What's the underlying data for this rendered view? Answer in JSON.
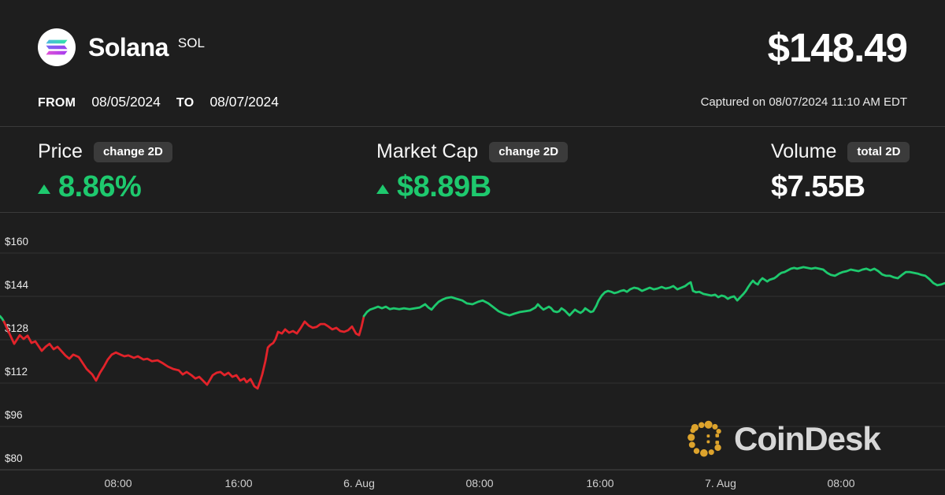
{
  "header": {
    "coin_name": "Solana",
    "coin_ticker": "SOL",
    "price": "$148.49",
    "captured": "Captured on 08/07/2024 11:10 AM EDT",
    "from_label": "FROM",
    "from_date": "08/05/2024",
    "to_label": "TO",
    "to_date": "08/07/2024"
  },
  "stats": [
    {
      "label": "Price",
      "badge": "change 2D",
      "value": "8.86%",
      "direction": "up",
      "value_color": "green"
    },
    {
      "label": "Market Cap",
      "badge": "change 2D",
      "value": "$8.89B",
      "direction": "up",
      "value_color": "green"
    },
    {
      "label": "Volume",
      "badge": "total 2D",
      "value": "$7.55B",
      "direction": "none",
      "value_color": "white"
    }
  ],
  "watermark": {
    "brand": "CoinDesk"
  },
  "colors": {
    "bg": "#1E1E1E",
    "divider": "#3A3A3A",
    "grid": "#333333",
    "axisline": "#454545",
    "badge": "#3B3B3B",
    "green": "#1EC96E",
    "red": "#E2232A",
    "gold": "#DDA32C"
  },
  "chart_data": {
    "type": "line",
    "title": "Solana (SOL) price, 08/05/2024 to 08/07/2024",
    "xlabel": "",
    "ylabel": "",
    "x_unit": "hours since 2024-08-05 00:00 UTC",
    "y_unit": "USD",
    "x_range": [
      0.16,
      62.9
    ],
    "y_range": [
      80,
      160
    ],
    "grid": true,
    "legend": false,
    "y_ticks": [
      {
        "value": 160,
        "label": "$160"
      },
      {
        "value": 144,
        "label": "$144"
      },
      {
        "value": 128,
        "label": "$128"
      },
      {
        "value": 112,
        "label": "$112"
      },
      {
        "value": 96,
        "label": "$96"
      },
      {
        "value": 80,
        "label": "$80"
      }
    ],
    "x_ticks": [
      {
        "value": 8,
        "label": "08:00"
      },
      {
        "value": 16,
        "label": "16:00"
      },
      {
        "value": 24,
        "label": "6. Aug"
      },
      {
        "value": 32,
        "label": "08:00"
      },
      {
        "value": 40,
        "label": "16:00"
      },
      {
        "value": 48,
        "label": "7. Aug"
      },
      {
        "value": 56,
        "label": "08:00"
      }
    ],
    "segments": [
      {
        "name": "opening-uptick",
        "color": "green",
        "points": [
          [
            0.16,
            136.7
          ],
          [
            0.3,
            135.8
          ],
          [
            0.42,
            134.7
          ]
        ]
      },
      {
        "name": "decline",
        "color": "red",
        "points": [
          [
            0.42,
            134.7
          ],
          [
            1.1,
            126.5
          ],
          [
            1.47,
            129.7
          ],
          [
            1.73,
            128.3
          ],
          [
            1.99,
            129.5
          ],
          [
            2.25,
            126.8
          ],
          [
            2.51,
            127.4
          ],
          [
            2.93,
            123.9
          ],
          [
            3.19,
            125.4
          ],
          [
            3.45,
            126.5
          ],
          [
            3.72,
            124.5
          ],
          [
            3.98,
            125.4
          ],
          [
            4.5,
            122.2
          ],
          [
            4.76,
            121.0
          ],
          [
            5.02,
            122.5
          ],
          [
            5.39,
            121.6
          ],
          [
            5.91,
            117.2
          ],
          [
            6.28,
            115.2
          ],
          [
            6.54,
            112.9
          ],
          [
            6.8,
            115.8
          ],
          [
            7.06,
            118.1
          ],
          [
            7.32,
            120.7
          ],
          [
            7.58,
            122.5
          ],
          [
            7.85,
            123.3
          ],
          [
            8.16,
            122.5
          ],
          [
            8.42,
            121.9
          ],
          [
            8.68,
            122.2
          ],
          [
            9.05,
            121.3
          ],
          [
            9.31,
            121.9
          ],
          [
            9.68,
            120.7
          ],
          [
            9.94,
            121.0
          ],
          [
            10.25,
            120.1
          ],
          [
            10.62,
            120.4
          ],
          [
            10.98,
            119.3
          ],
          [
            11.3,
            118.1
          ],
          [
            11.66,
            117.2
          ],
          [
            12.03,
            116.7
          ],
          [
            12.29,
            115.2
          ],
          [
            12.55,
            116.1
          ],
          [
            12.87,
            114.9
          ],
          [
            13.13,
            113.7
          ],
          [
            13.39,
            114.3
          ],
          [
            13.75,
            112.3
          ],
          [
            13.91,
            111.4
          ],
          [
            14.28,
            114.9
          ],
          [
            14.54,
            115.8
          ],
          [
            14.8,
            116.1
          ],
          [
            15.06,
            114.9
          ],
          [
            15.32,
            115.8
          ],
          [
            15.59,
            114.3
          ],
          [
            15.85,
            114.9
          ],
          [
            16.11,
            112.9
          ],
          [
            16.37,
            113.7
          ],
          [
            16.53,
            112.3
          ],
          [
            16.79,
            113.5
          ],
          [
            17.05,
            110.8
          ],
          [
            17.26,
            110.0
          ],
          [
            17.41,
            112.3
          ],
          [
            17.57,
            115.2
          ],
          [
            17.78,
            120.1
          ],
          [
            17.94,
            125.1
          ],
          [
            18.09,
            126.0
          ],
          [
            18.3,
            126.8
          ],
          [
            18.46,
            128.3
          ],
          [
            18.62,
            130.9
          ],
          [
            18.88,
            130.3
          ],
          [
            19.09,
            131.8
          ],
          [
            19.35,
            130.6
          ],
          [
            19.61,
            131.2
          ],
          [
            19.87,
            130.3
          ],
          [
            20.13,
            132.4
          ],
          [
            20.39,
            134.7
          ],
          [
            20.66,
            133.2
          ],
          [
            20.92,
            132.4
          ],
          [
            21.18,
            132.7
          ],
          [
            21.44,
            133.8
          ],
          [
            21.7,
            133.8
          ],
          [
            21.96,
            132.9
          ],
          [
            22.22,
            131.8
          ],
          [
            22.49,
            132.4
          ],
          [
            22.75,
            131.2
          ],
          [
            23.01,
            130.9
          ],
          [
            23.27,
            131.5
          ],
          [
            23.53,
            132.9
          ],
          [
            23.79,
            130.3
          ],
          [
            24.0,
            129.7
          ],
          [
            24.16,
            132.7
          ],
          [
            24.32,
            136.7
          ]
        ]
      },
      {
        "name": "recovery",
        "color": "green",
        "points": [
          [
            24.32,
            136.7
          ],
          [
            24.52,
            138.2
          ],
          [
            24.73,
            139.1
          ],
          [
            24.99,
            139.6
          ],
          [
            25.26,
            140.2
          ],
          [
            25.52,
            139.6
          ],
          [
            25.78,
            140.2
          ],
          [
            26.04,
            139.3
          ],
          [
            26.3,
            139.6
          ],
          [
            26.67,
            139.3
          ],
          [
            26.98,
            139.6
          ],
          [
            27.35,
            139.3
          ],
          [
            27.71,
            139.6
          ],
          [
            28.03,
            139.9
          ],
          [
            28.39,
            141.1
          ],
          [
            28.6,
            139.9
          ],
          [
            28.81,
            139.1
          ],
          [
            29.02,
            140.5
          ],
          [
            29.28,
            142.0
          ],
          [
            29.54,
            142.8
          ],
          [
            29.8,
            143.4
          ],
          [
            30.12,
            143.7
          ],
          [
            30.48,
            143.1
          ],
          [
            30.85,
            142.5
          ],
          [
            31.16,
            141.4
          ],
          [
            31.53,
            141.1
          ],
          [
            31.9,
            142.0
          ],
          [
            32.21,
            142.5
          ],
          [
            32.58,
            141.4
          ],
          [
            32.94,
            139.9
          ],
          [
            33.26,
            138.5
          ],
          [
            33.62,
            137.6
          ],
          [
            33.99,
            137.0
          ],
          [
            34.3,
            137.6
          ],
          [
            34.67,
            138.2
          ],
          [
            35.03,
            138.5
          ],
          [
            35.35,
            138.8
          ],
          [
            35.71,
            139.9
          ],
          [
            35.87,
            141.1
          ],
          [
            36.08,
            139.9
          ],
          [
            36.24,
            139.1
          ],
          [
            36.6,
            140.2
          ],
          [
            36.76,
            139.6
          ],
          [
            36.92,
            138.5
          ],
          [
            37.13,
            138.2
          ],
          [
            37.28,
            138.5
          ],
          [
            37.44,
            139.6
          ],
          [
            37.65,
            138.8
          ],
          [
            37.81,
            137.9
          ],
          [
            37.97,
            137.0
          ],
          [
            38.18,
            138.2
          ],
          [
            38.33,
            139.1
          ],
          [
            38.49,
            138.5
          ],
          [
            38.7,
            137.9
          ],
          [
            38.86,
            138.5
          ],
          [
            39.01,
            139.6
          ],
          [
            39.22,
            138.8
          ],
          [
            39.38,
            138.2
          ],
          [
            39.54,
            138.5
          ],
          [
            39.75,
            140.5
          ],
          [
            39.9,
            142.5
          ],
          [
            40.11,
            144.3
          ],
          [
            40.32,
            145.5
          ],
          [
            40.53,
            146.0
          ],
          [
            40.74,
            145.7
          ],
          [
            40.95,
            145.2
          ],
          [
            41.16,
            145.5
          ],
          [
            41.37,
            146.0
          ],
          [
            41.58,
            146.3
          ],
          [
            41.79,
            145.7
          ],
          [
            41.99,
            146.6
          ],
          [
            42.26,
            147.2
          ],
          [
            42.52,
            146.9
          ],
          [
            42.78,
            146.0
          ],
          [
            43.04,
            146.6
          ],
          [
            43.3,
            147.2
          ],
          [
            43.56,
            146.6
          ],
          [
            43.82,
            146.9
          ],
          [
            44.09,
            147.5
          ],
          [
            44.35,
            146.9
          ],
          [
            44.61,
            147.2
          ],
          [
            44.87,
            147.8
          ],
          [
            45.13,
            146.6
          ],
          [
            45.39,
            147.2
          ],
          [
            45.65,
            147.8
          ],
          [
            45.86,
            148.7
          ],
          [
            46.02,
            149.2
          ],
          [
            46.17,
            146.0
          ],
          [
            46.38,
            145.5
          ],
          [
            46.59,
            145.7
          ],
          [
            46.86,
            144.9
          ],
          [
            47.12,
            144.6
          ],
          [
            47.38,
            144.3
          ],
          [
            47.64,
            144.6
          ],
          [
            47.85,
            143.7
          ],
          [
            48.06,
            144.3
          ],
          [
            48.27,
            144.0
          ],
          [
            48.48,
            143.1
          ],
          [
            48.69,
            143.7
          ],
          [
            48.9,
            144.0
          ],
          [
            49.11,
            142.5
          ],
          [
            49.31,
            143.7
          ],
          [
            49.52,
            144.9
          ],
          [
            49.68,
            146.0
          ],
          [
            49.84,
            147.5
          ],
          [
            49.99,
            148.7
          ],
          [
            50.15,
            149.8
          ],
          [
            50.31,
            148.9
          ],
          [
            50.47,
            148.4
          ],
          [
            50.62,
            149.8
          ],
          [
            50.78,
            150.7
          ],
          [
            50.94,
            150.1
          ],
          [
            51.1,
            149.5
          ],
          [
            51.25,
            150.1
          ],
          [
            51.41,
            150.4
          ],
          [
            51.57,
            150.7
          ],
          [
            51.72,
            151.3
          ],
          [
            51.88,
            152.1
          ],
          [
            52.04,
            152.7
          ],
          [
            52.25,
            153.0
          ],
          [
            52.46,
            153.6
          ],
          [
            52.67,
            154.2
          ],
          [
            52.88,
            154.5
          ],
          [
            53.08,
            154.2
          ],
          [
            53.29,
            154.5
          ],
          [
            53.5,
            154.8
          ],
          [
            53.77,
            154.5
          ],
          [
            54.03,
            154.2
          ],
          [
            54.29,
            154.5
          ],
          [
            54.55,
            154.2
          ],
          [
            54.81,
            153.9
          ],
          [
            55.07,
            152.7
          ],
          [
            55.33,
            151.9
          ],
          [
            55.59,
            151.6
          ],
          [
            55.86,
            152.4
          ],
          [
            56.12,
            153.0
          ],
          [
            56.38,
            153.3
          ],
          [
            56.64,
            153.9
          ],
          [
            56.9,
            153.6
          ],
          [
            57.16,
            153.3
          ],
          [
            57.42,
            153.9
          ],
          [
            57.68,
            154.2
          ],
          [
            57.95,
            153.6
          ],
          [
            58.21,
            154.2
          ],
          [
            58.47,
            153.3
          ],
          [
            58.73,
            152.1
          ],
          [
            58.99,
            151.6
          ],
          [
            59.25,
            151.6
          ],
          [
            59.51,
            151.0
          ],
          [
            59.77,
            150.7
          ],
          [
            60.04,
            151.9
          ],
          [
            60.3,
            153.0
          ],
          [
            60.56,
            153.0
          ],
          [
            60.82,
            152.7
          ],
          [
            61.08,
            152.4
          ],
          [
            61.34,
            151.9
          ],
          [
            61.6,
            151.6
          ],
          [
            61.86,
            150.4
          ],
          [
            62.13,
            148.9
          ],
          [
            62.39,
            148.1
          ],
          [
            62.65,
            148.4
          ],
          [
            62.9,
            148.9
          ]
        ]
      }
    ]
  }
}
